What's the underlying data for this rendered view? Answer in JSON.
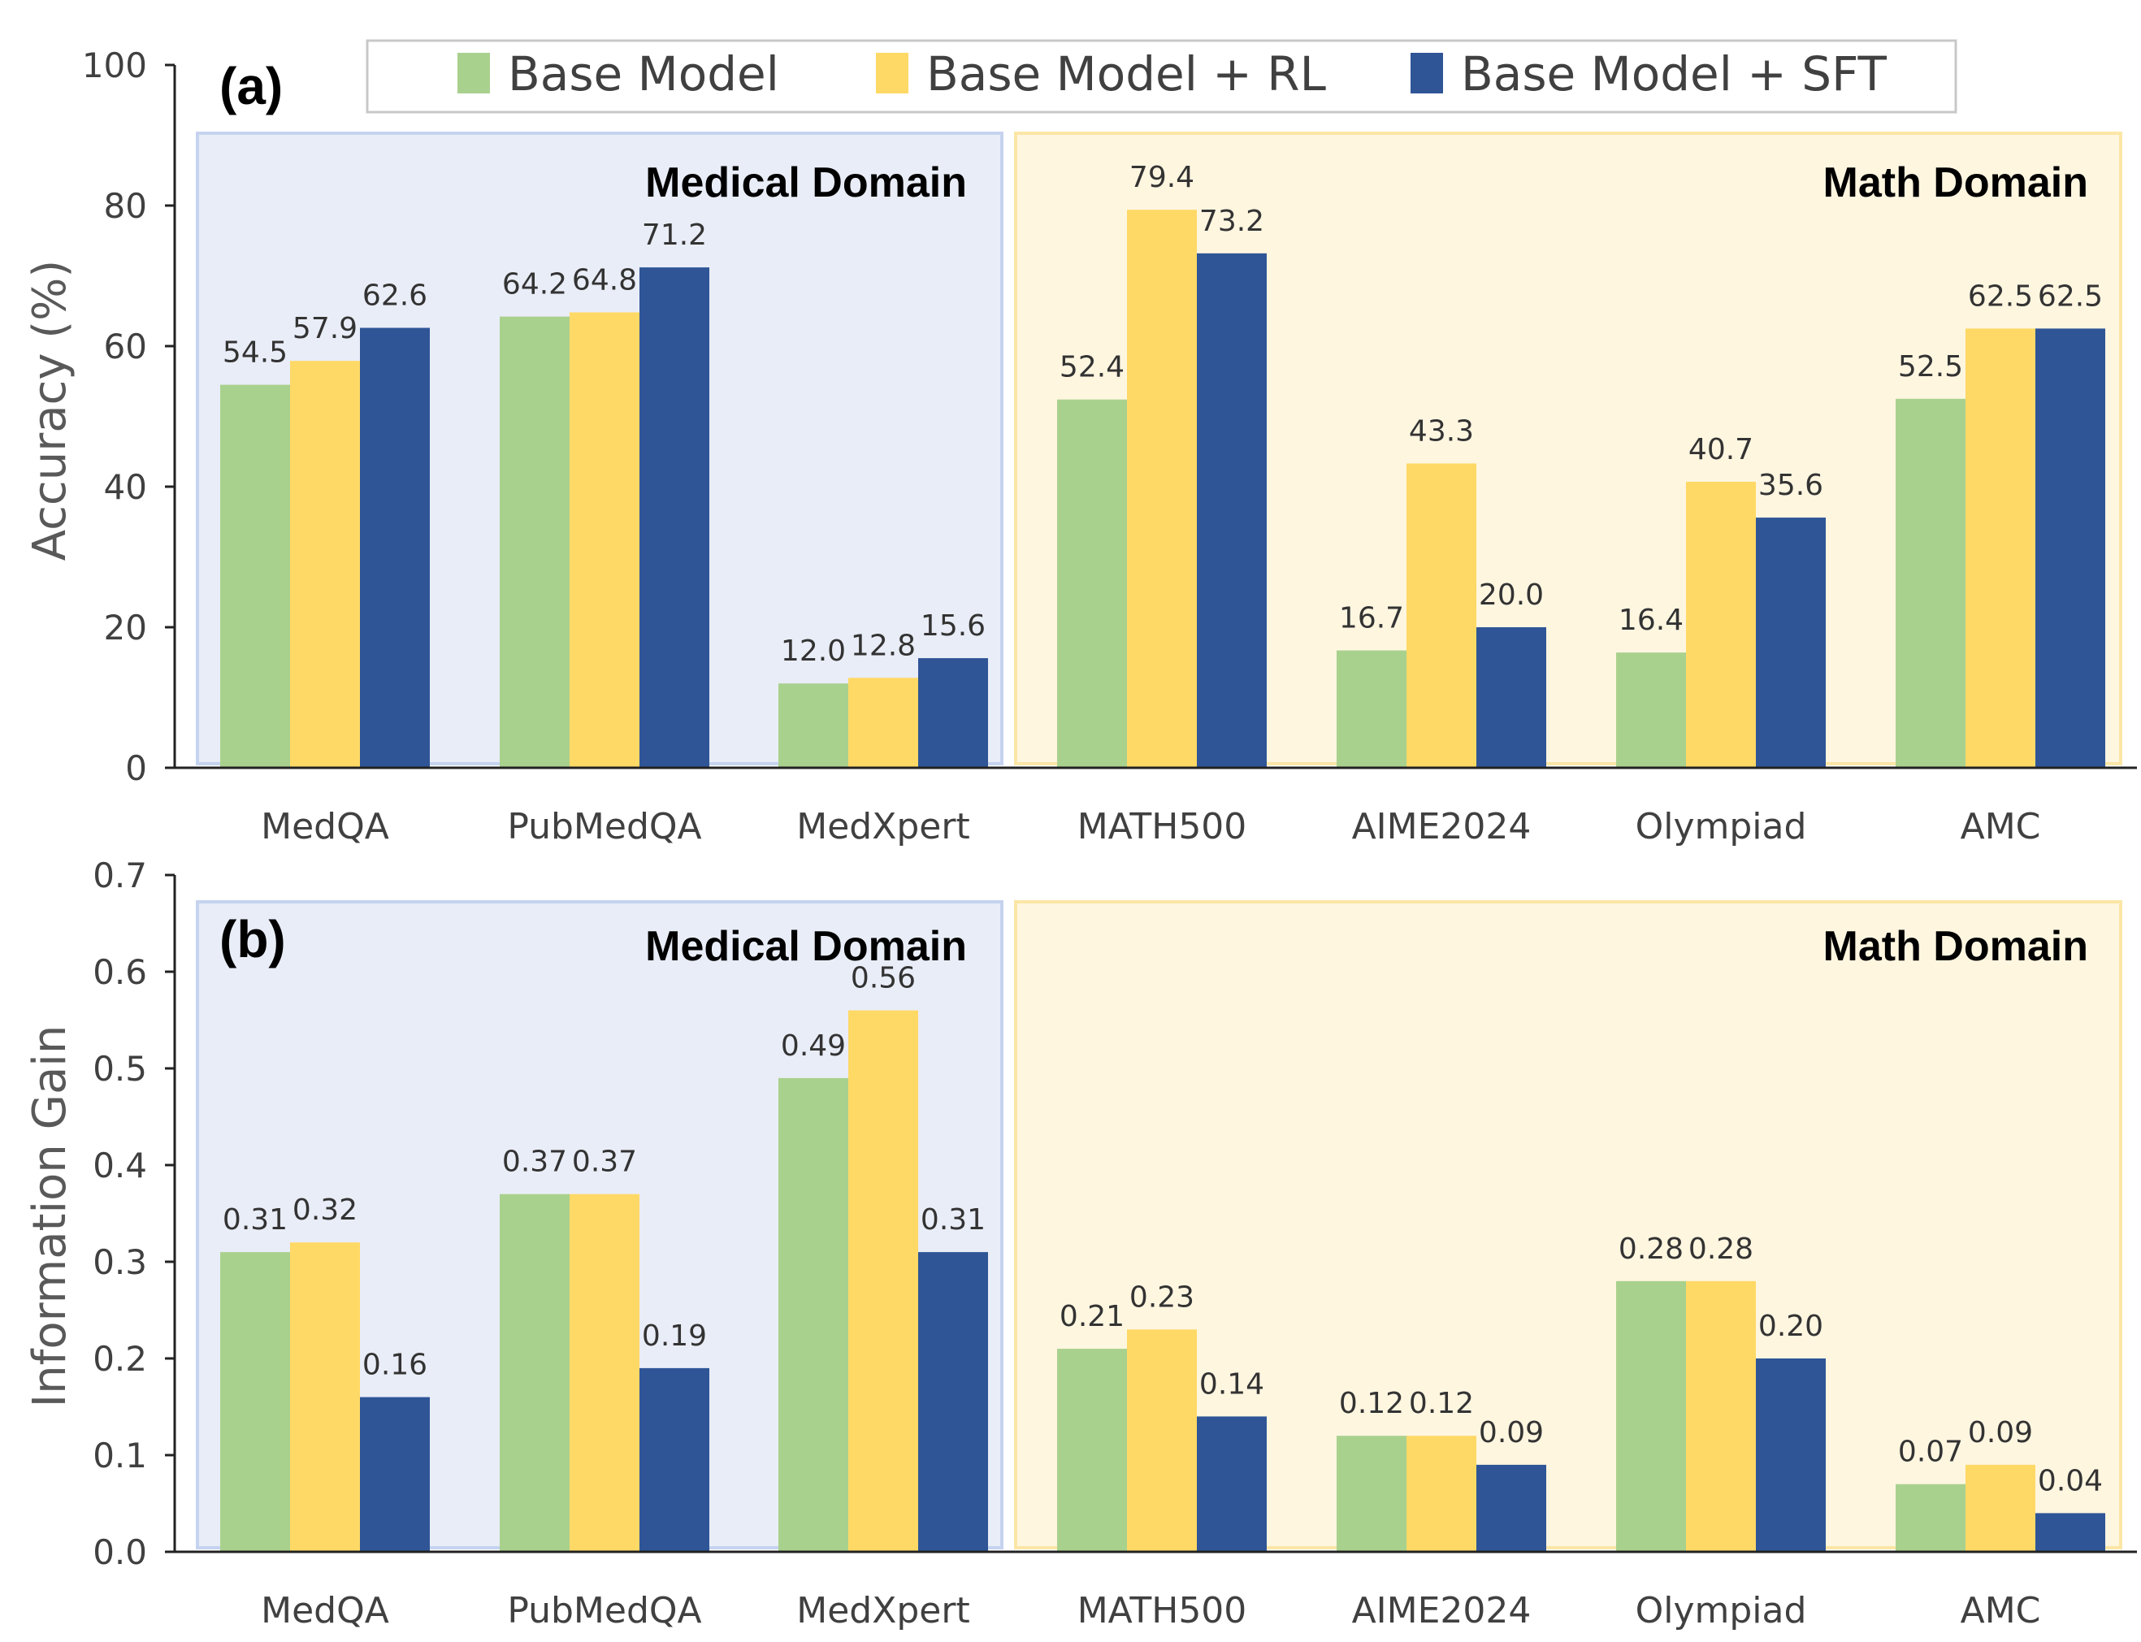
{
  "colors": {
    "base": "#a9d18e",
    "rl": "#ffd966",
    "sft": "#2f5597",
    "medical_bg": "#e9edf7",
    "medical_border": "#c5d3ef",
    "math_bg": "#fff6e0",
    "math_border": "#fbe6a6"
  },
  "legend": {
    "items": [
      {
        "label": "Base Model",
        "color_key": "base"
      },
      {
        "label": "Base Model + RL",
        "color_key": "rl"
      },
      {
        "label": "Base Model + SFT",
        "color_key": "sft"
      }
    ]
  },
  "chart_data": [
    {
      "type": "bar",
      "panel_label": "(a)",
      "ylabel": "Accuracy (%)",
      "xlabel": "",
      "ylim": [
        0,
        100
      ],
      "yticks": [
        "0",
        "20",
        "40",
        "60",
        "80",
        "100"
      ],
      "grid": false,
      "legend_position": "top",
      "categories": [
        "MedQA",
        "PubMedQA",
        "MedXpert",
        "MATH500",
        "AIME2024",
        "Olympiad",
        "AMC"
      ],
      "domains": [
        {
          "label": "Medical Domain",
          "categories": [
            "MedQA",
            "PubMedQA",
            "MedXpert"
          ]
        },
        {
          "label": "Math Domain",
          "categories": [
            "MATH500",
            "AIME2024",
            "Olympiad",
            "AMC"
          ]
        }
      ],
      "series": [
        {
          "name": "Base Model",
          "values": [
            54.5,
            64.2,
            12.0,
            52.4,
            16.7,
            16.4,
            52.5
          ],
          "labels": [
            "54.5",
            "64.2",
            "12.0",
            "52.4",
            "16.7",
            "16.4",
            "52.5"
          ]
        },
        {
          "name": "Base Model + RL",
          "values": [
            57.9,
            64.8,
            12.8,
            79.4,
            43.3,
            40.7,
            62.5
          ],
          "labels": [
            "57.9",
            "64.8",
            "12.8",
            "79.4",
            "43.3",
            "40.7",
            "62.5"
          ]
        },
        {
          "name": "Base Model + SFT",
          "values": [
            62.6,
            71.2,
            15.6,
            73.2,
            20.0,
            35.6,
            62.5
          ],
          "labels": [
            "62.6",
            "71.2",
            "15.6",
            "73.2",
            "20.0",
            "35.6",
            "62.5"
          ]
        }
      ]
    },
    {
      "type": "bar",
      "panel_label": "(b)",
      "ylabel": "Information Gain",
      "xlabel": "",
      "ylim": [
        0,
        0.7
      ],
      "yticks": [
        "0.0",
        "0.1",
        "0.2",
        "0.3",
        "0.4",
        "0.5",
        "0.6",
        "0.7"
      ],
      "grid": false,
      "categories": [
        "MedQA",
        "PubMedQA",
        "MedXpert",
        "MATH500",
        "AIME2024",
        "Olympiad",
        "AMC"
      ],
      "domains": [
        {
          "label": "Medical Domain",
          "categories": [
            "MedQA",
            "PubMedQA",
            "MedXpert"
          ]
        },
        {
          "label": "Math Domain",
          "categories": [
            "MATH500",
            "AIME2024",
            "Olympiad",
            "AMC"
          ]
        }
      ],
      "series": [
        {
          "name": "Base Model",
          "values": [
            0.31,
            0.37,
            0.49,
            0.21,
            0.12,
            0.28,
            0.07
          ],
          "labels": [
            "0.31",
            "0.37",
            "0.49",
            "0.21",
            "0.12",
            "0.28",
            "0.07"
          ]
        },
        {
          "name": "Base Model + RL",
          "values": [
            0.32,
            0.37,
            0.56,
            0.23,
            0.12,
            0.28,
            0.09
          ],
          "labels": [
            "0.32",
            "0.37",
            "0.56",
            "0.23",
            "0.12",
            "0.28",
            "0.09"
          ]
        },
        {
          "name": "Base Model + SFT",
          "values": [
            0.16,
            0.19,
            0.31,
            0.14,
            0.09,
            0.2,
            0.04
          ],
          "labels": [
            "0.16",
            "0.19",
            "0.31",
            "0.14",
            "0.09",
            "0.20",
            "0.04"
          ]
        }
      ]
    }
  ]
}
